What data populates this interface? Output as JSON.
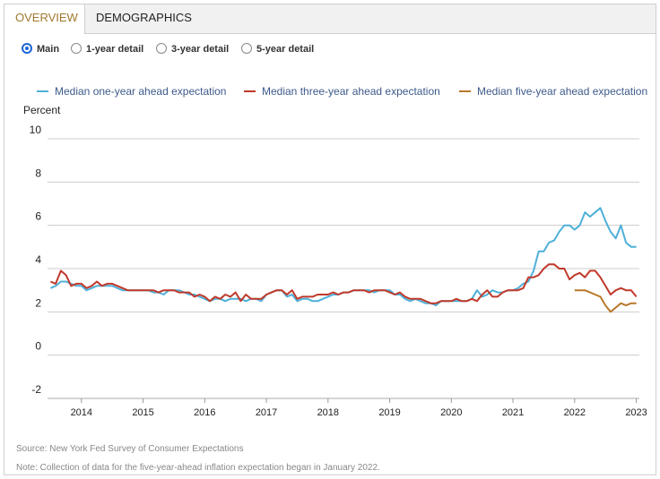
{
  "tabs": [
    {
      "label": "OVERVIEW",
      "active": true
    },
    {
      "label": "DEMOGRAPHICS",
      "active": false
    }
  ],
  "radio_options": [
    {
      "label": "Main",
      "checked": true
    },
    {
      "label": "1-year detail",
      "checked": false
    },
    {
      "label": "3-year detail",
      "checked": false
    },
    {
      "label": "5-year detail",
      "checked": false
    }
  ],
  "notes": {
    "source": "Source: New York Fed Survey of Consumer Expectations",
    "note": "Note: Collection of data for the five-year-ahead inflation expectation began in January 2022."
  },
  "chart_data": {
    "type": "line",
    "ylabel": "Percent",
    "ylim": [
      -2,
      10
    ],
    "yticks": [
      10,
      8,
      6,
      4,
      2,
      0,
      -2
    ],
    "xlim": [
      2013.45,
      2023.05
    ],
    "xticks": [
      "2014",
      "2015",
      "2016",
      "2017",
      "2018",
      "2019",
      "2020",
      "2021",
      "2022",
      "2023"
    ],
    "grid": true,
    "legend_position": "top",
    "series": [
      {
        "name": "Median one-year ahead expectation",
        "color": "#4fb0d8",
        "x": [
          2013.5,
          2013.583,
          2013.667,
          2013.75,
          2013.833,
          2013.917,
          2014.0,
          2014.083,
          2014.167,
          2014.25,
          2014.333,
          2014.417,
          2014.5,
          2014.583,
          2014.667,
          2014.75,
          2014.833,
          2014.917,
          2015.0,
          2015.083,
          2015.167,
          2015.25,
          2015.333,
          2015.417,
          2015.5,
          2015.583,
          2015.667,
          2015.75,
          2015.833,
          2015.917,
          2016.0,
          2016.083,
          2016.167,
          2016.25,
          2016.333,
          2016.417,
          2016.5,
          2016.583,
          2016.667,
          2016.75,
          2016.833,
          2016.917,
          2017.0,
          2017.083,
          2017.167,
          2017.25,
          2017.333,
          2017.417,
          2017.5,
          2017.583,
          2017.667,
          2017.75,
          2017.833,
          2017.917,
          2018.0,
          2018.083,
          2018.167,
          2018.25,
          2018.333,
          2018.417,
          2018.5,
          2018.583,
          2018.667,
          2018.75,
          2018.833,
          2018.917,
          2019.0,
          2019.083,
          2019.167,
          2019.25,
          2019.333,
          2019.417,
          2019.5,
          2019.583,
          2019.667,
          2019.75,
          2019.833,
          2019.917,
          2020.0,
          2020.083,
          2020.167,
          2020.25,
          2020.333,
          2020.417,
          2020.5,
          2020.583,
          2020.667,
          2020.75,
          2020.833,
          2020.917,
          2021.0,
          2021.083,
          2021.167,
          2021.25,
          2021.333,
          2021.417,
          2021.5,
          2021.583,
          2021.667,
          2021.75,
          2021.833,
          2021.917,
          2022.0,
          2022.083,
          2022.167,
          2022.25,
          2022.333,
          2022.417,
          2022.5,
          2022.583,
          2022.667,
          2022.75,
          2022.833,
          2022.917,
          2023.0
        ],
        "y": [
          3.1,
          3.2,
          3.4,
          3.4,
          3.3,
          3.2,
          3.2,
          3.0,
          3.1,
          3.2,
          3.2,
          3.2,
          3.2,
          3.1,
          3.0,
          3.0,
          3.0,
          3.0,
          3.0,
          3.0,
          2.9,
          2.9,
          2.8,
          3.0,
          3.0,
          3.0,
          2.9,
          2.8,
          2.8,
          2.7,
          2.6,
          2.5,
          2.6,
          2.6,
          2.5,
          2.6,
          2.6,
          2.6,
          2.5,
          2.6,
          2.6,
          2.5,
          2.8,
          2.9,
          3.0,
          3.0,
          2.7,
          2.8,
          2.5,
          2.6,
          2.6,
          2.5,
          2.5,
          2.6,
          2.7,
          2.8,
          2.8,
          2.9,
          2.9,
          3.0,
          3.0,
          3.0,
          3.0,
          2.9,
          3.0,
          3.0,
          3.0,
          2.8,
          2.8,
          2.6,
          2.5,
          2.6,
          2.5,
          2.4,
          2.4,
          2.3,
          2.5,
          2.5,
          2.5,
          2.5,
          2.5,
          2.5,
          2.6,
          3.0,
          2.7,
          2.8,
          3.0,
          2.9,
          2.9,
          3.0,
          3.0,
          3.1,
          3.3,
          3.4,
          3.9,
          4.8,
          4.8,
          5.2,
          5.3,
          5.7,
          6.0,
          6.0,
          5.8,
          6.0,
          6.6,
          6.4,
          6.6,
          6.8,
          6.2,
          5.7,
          5.4,
          6.0,
          5.2,
          5.0,
          5.0
        ]
      },
      {
        "name": "Median three-year ahead expectation",
        "color": "#c0392b",
        "x": [
          2013.5,
          2013.583,
          2013.667,
          2013.75,
          2013.833,
          2013.917,
          2014.0,
          2014.083,
          2014.167,
          2014.25,
          2014.333,
          2014.417,
          2014.5,
          2014.583,
          2014.667,
          2014.75,
          2014.833,
          2014.917,
          2015.0,
          2015.083,
          2015.167,
          2015.25,
          2015.333,
          2015.417,
          2015.5,
          2015.583,
          2015.667,
          2015.75,
          2015.833,
          2015.917,
          2016.0,
          2016.083,
          2016.167,
          2016.25,
          2016.333,
          2016.417,
          2016.5,
          2016.583,
          2016.667,
          2016.75,
          2016.833,
          2016.917,
          2017.0,
          2017.083,
          2017.167,
          2017.25,
          2017.333,
          2017.417,
          2017.5,
          2017.583,
          2017.667,
          2017.75,
          2017.833,
          2017.917,
          2018.0,
          2018.083,
          2018.167,
          2018.25,
          2018.333,
          2018.417,
          2018.5,
          2018.583,
          2018.667,
          2018.75,
          2018.833,
          2018.917,
          2019.0,
          2019.083,
          2019.167,
          2019.25,
          2019.333,
          2019.417,
          2019.5,
          2019.583,
          2019.667,
          2019.75,
          2019.833,
          2019.917,
          2020.0,
          2020.083,
          2020.167,
          2020.25,
          2020.333,
          2020.417,
          2020.5,
          2020.583,
          2020.667,
          2020.75,
          2020.833,
          2020.917,
          2021.0,
          2021.083,
          2021.167,
          2021.25,
          2021.333,
          2021.417,
          2021.5,
          2021.583,
          2021.667,
          2021.75,
          2021.833,
          2021.917,
          2022.0,
          2022.083,
          2022.167,
          2022.25,
          2022.333,
          2022.417,
          2022.5,
          2022.583,
          2022.667,
          2022.75,
          2022.833,
          2022.917,
          2023.0
        ],
        "y": [
          3.4,
          3.3,
          3.9,
          3.7,
          3.2,
          3.3,
          3.3,
          3.1,
          3.2,
          3.4,
          3.2,
          3.3,
          3.3,
          3.2,
          3.1,
          3.0,
          3.0,
          3.0,
          3.0,
          3.0,
          3.0,
          2.9,
          3.0,
          3.0,
          3.0,
          2.9,
          2.9,
          2.9,
          2.7,
          2.8,
          2.7,
          2.5,
          2.7,
          2.6,
          2.8,
          2.7,
          2.9,
          2.5,
          2.8,
          2.6,
          2.6,
          2.6,
          2.8,
          2.9,
          3.0,
          3.0,
          2.8,
          3.0,
          2.6,
          2.7,
          2.7,
          2.7,
          2.8,
          2.8,
          2.8,
          2.9,
          2.8,
          2.9,
          2.9,
          3.0,
          3.0,
          3.0,
          2.9,
          3.0,
          3.0,
          3.0,
          2.9,
          2.8,
          2.9,
          2.7,
          2.6,
          2.6,
          2.6,
          2.5,
          2.4,
          2.4,
          2.5,
          2.5,
          2.5,
          2.6,
          2.5,
          2.5,
          2.6,
          2.5,
          2.8,
          3.0,
          2.7,
          2.7,
          2.9,
          3.0,
          3.0,
          3.0,
          3.1,
          3.6,
          3.6,
          3.7,
          4.0,
          4.2,
          4.2,
          4.0,
          4.0,
          3.5,
          3.7,
          3.8,
          3.6,
          3.9,
          3.9,
          3.6,
          3.2,
          2.8,
          3.0,
          3.1,
          3.0,
          3.0,
          2.7
        ]
      },
      {
        "name": "Median five-year ahead expectation",
        "color": "#b8792a",
        "x": [
          2022.0,
          2022.083,
          2022.167,
          2022.25,
          2022.333,
          2022.417,
          2022.5,
          2022.583,
          2022.667,
          2022.75,
          2022.833,
          2022.917,
          2023.0
        ],
        "y": [
          3.0,
          3.0,
          3.0,
          2.9,
          2.8,
          2.7,
          2.3,
          2.0,
          2.2,
          2.4,
          2.3,
          2.4,
          2.4
        ]
      }
    ]
  }
}
